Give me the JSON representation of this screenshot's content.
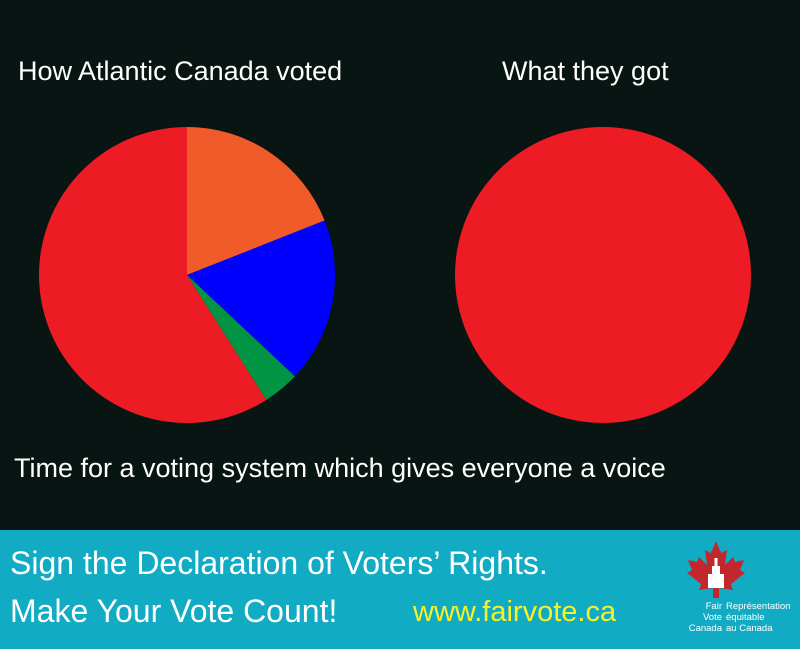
{
  "chart_data": [
    {
      "type": "pie",
      "title": "How Atlantic Canada voted",
      "slices": [
        {
          "value": 19,
          "color": "#f15a29"
        },
        {
          "value": 18,
          "color": "#0000ff"
        },
        {
          "value": 4,
          "color": "#009444"
        },
        {
          "value": 59,
          "color": "#ed1c24"
        }
      ]
    },
    {
      "type": "pie",
      "title": "What they got",
      "slices": [
        {
          "value": 100,
          "color": "#ed1c24"
        }
      ]
    }
  ],
  "tagline": "Time for a voting system which gives everyone a voice",
  "banner": {
    "line1": "Sign the Declaration of Voters’ Rights.",
    "line2": "Make Your Vote Count!",
    "url": "www.fairvote.ca",
    "logo": {
      "left_lines": [
        "Fair",
        "Vote",
        "Canada"
      ],
      "right_lines": [
        "Représentation",
        "équitable",
        "au Canada"
      ]
    }
  },
  "colors": {
    "background": "#081512",
    "banner": "#12abc4",
    "url": "#f5f229",
    "logo_leaf": "#c1272d"
  }
}
